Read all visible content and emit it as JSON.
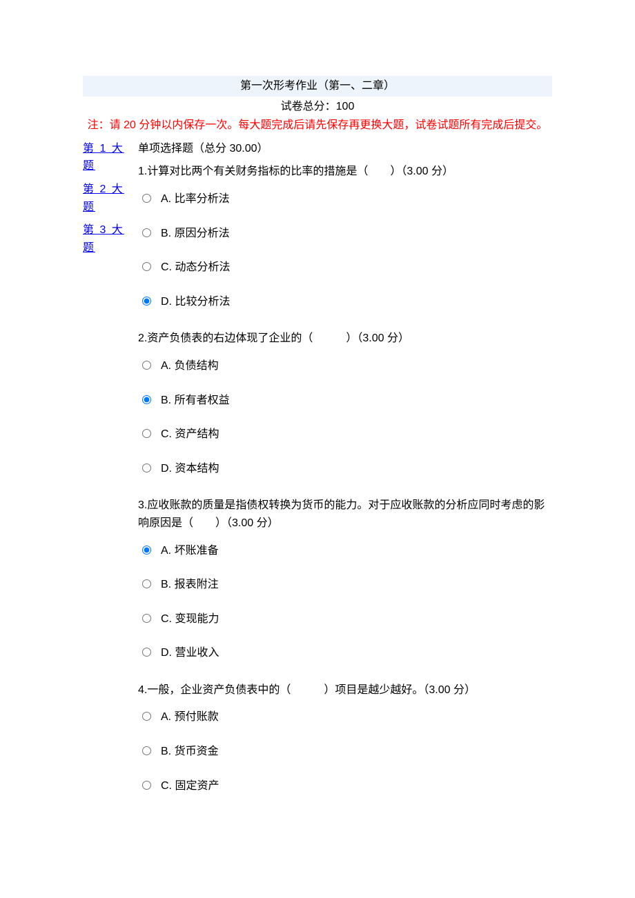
{
  "header": {
    "title": "第一次形考作业（第一、二章）",
    "total_score_label": "试卷总分：",
    "total_score_value": "100",
    "notice_prefix": "注：请 ",
    "notice_minutes": "20",
    "notice_text": " 分钟以内保存一次。每大题完成后请先保存再更换大题，试卷试题所有完成后提交。"
  },
  "sidebar": {
    "links": [
      {
        "label": "第 1 大题"
      },
      {
        "label": "第 2 大题"
      },
      {
        "label": "第 3 大题"
      }
    ]
  },
  "section": {
    "title": "单项选择题（总分 30.00）"
  },
  "questions": [
    {
      "number": "1.",
      "text": "计算对比两个有关财务指标的比率的措施是（　　）",
      "score": "（3.00 分）",
      "options": [
        {
          "label": "A. 比率分析法",
          "selected": false
        },
        {
          "label": "B. 原因分析法",
          "selected": false
        },
        {
          "label": "C. 动态分析法",
          "selected": false
        },
        {
          "label": "D. 比较分析法",
          "selected": true
        }
      ]
    },
    {
      "number": "2.",
      "text": "资产负债表的右边体现了企业的（　　　）",
      "score": "（3.00 分）",
      "options": [
        {
          "label": "A. 负债结构",
          "selected": false
        },
        {
          "label": "B. 所有者权益",
          "selected": true
        },
        {
          "label": "C. 资产结构",
          "selected": false
        },
        {
          "label": "D. 资本结构",
          "selected": false
        }
      ]
    },
    {
      "number": "3.",
      "text": "应收账款的质量是指债权转换为货币的能力。对于应收账款的分析应同时考虑的影响原因是（　　）",
      "score": "（3.00 分）",
      "options": [
        {
          "label": "A. 坏账准备",
          "selected": true
        },
        {
          "label": "B. 报表附注",
          "selected": false
        },
        {
          "label": "C. 变现能力",
          "selected": false
        },
        {
          "label": "D. 营业收入",
          "selected": false
        }
      ]
    },
    {
      "number": "4.",
      "text": "一般，企业资产负债表中的（　　　）项目是越少越好。",
      "score": "（3.00 分）",
      "options": [
        {
          "label": "A. 预付账款",
          "selected": false
        },
        {
          "label": "B. 货币资金",
          "selected": false
        },
        {
          "label": "C. 固定资产",
          "selected": false
        }
      ]
    }
  ],
  "colors": {
    "header_bg": "#edf4fb",
    "notice_color": "#ff0000",
    "link_color": "#0000ee",
    "text_color": "#000000",
    "background": "#ffffff"
  }
}
